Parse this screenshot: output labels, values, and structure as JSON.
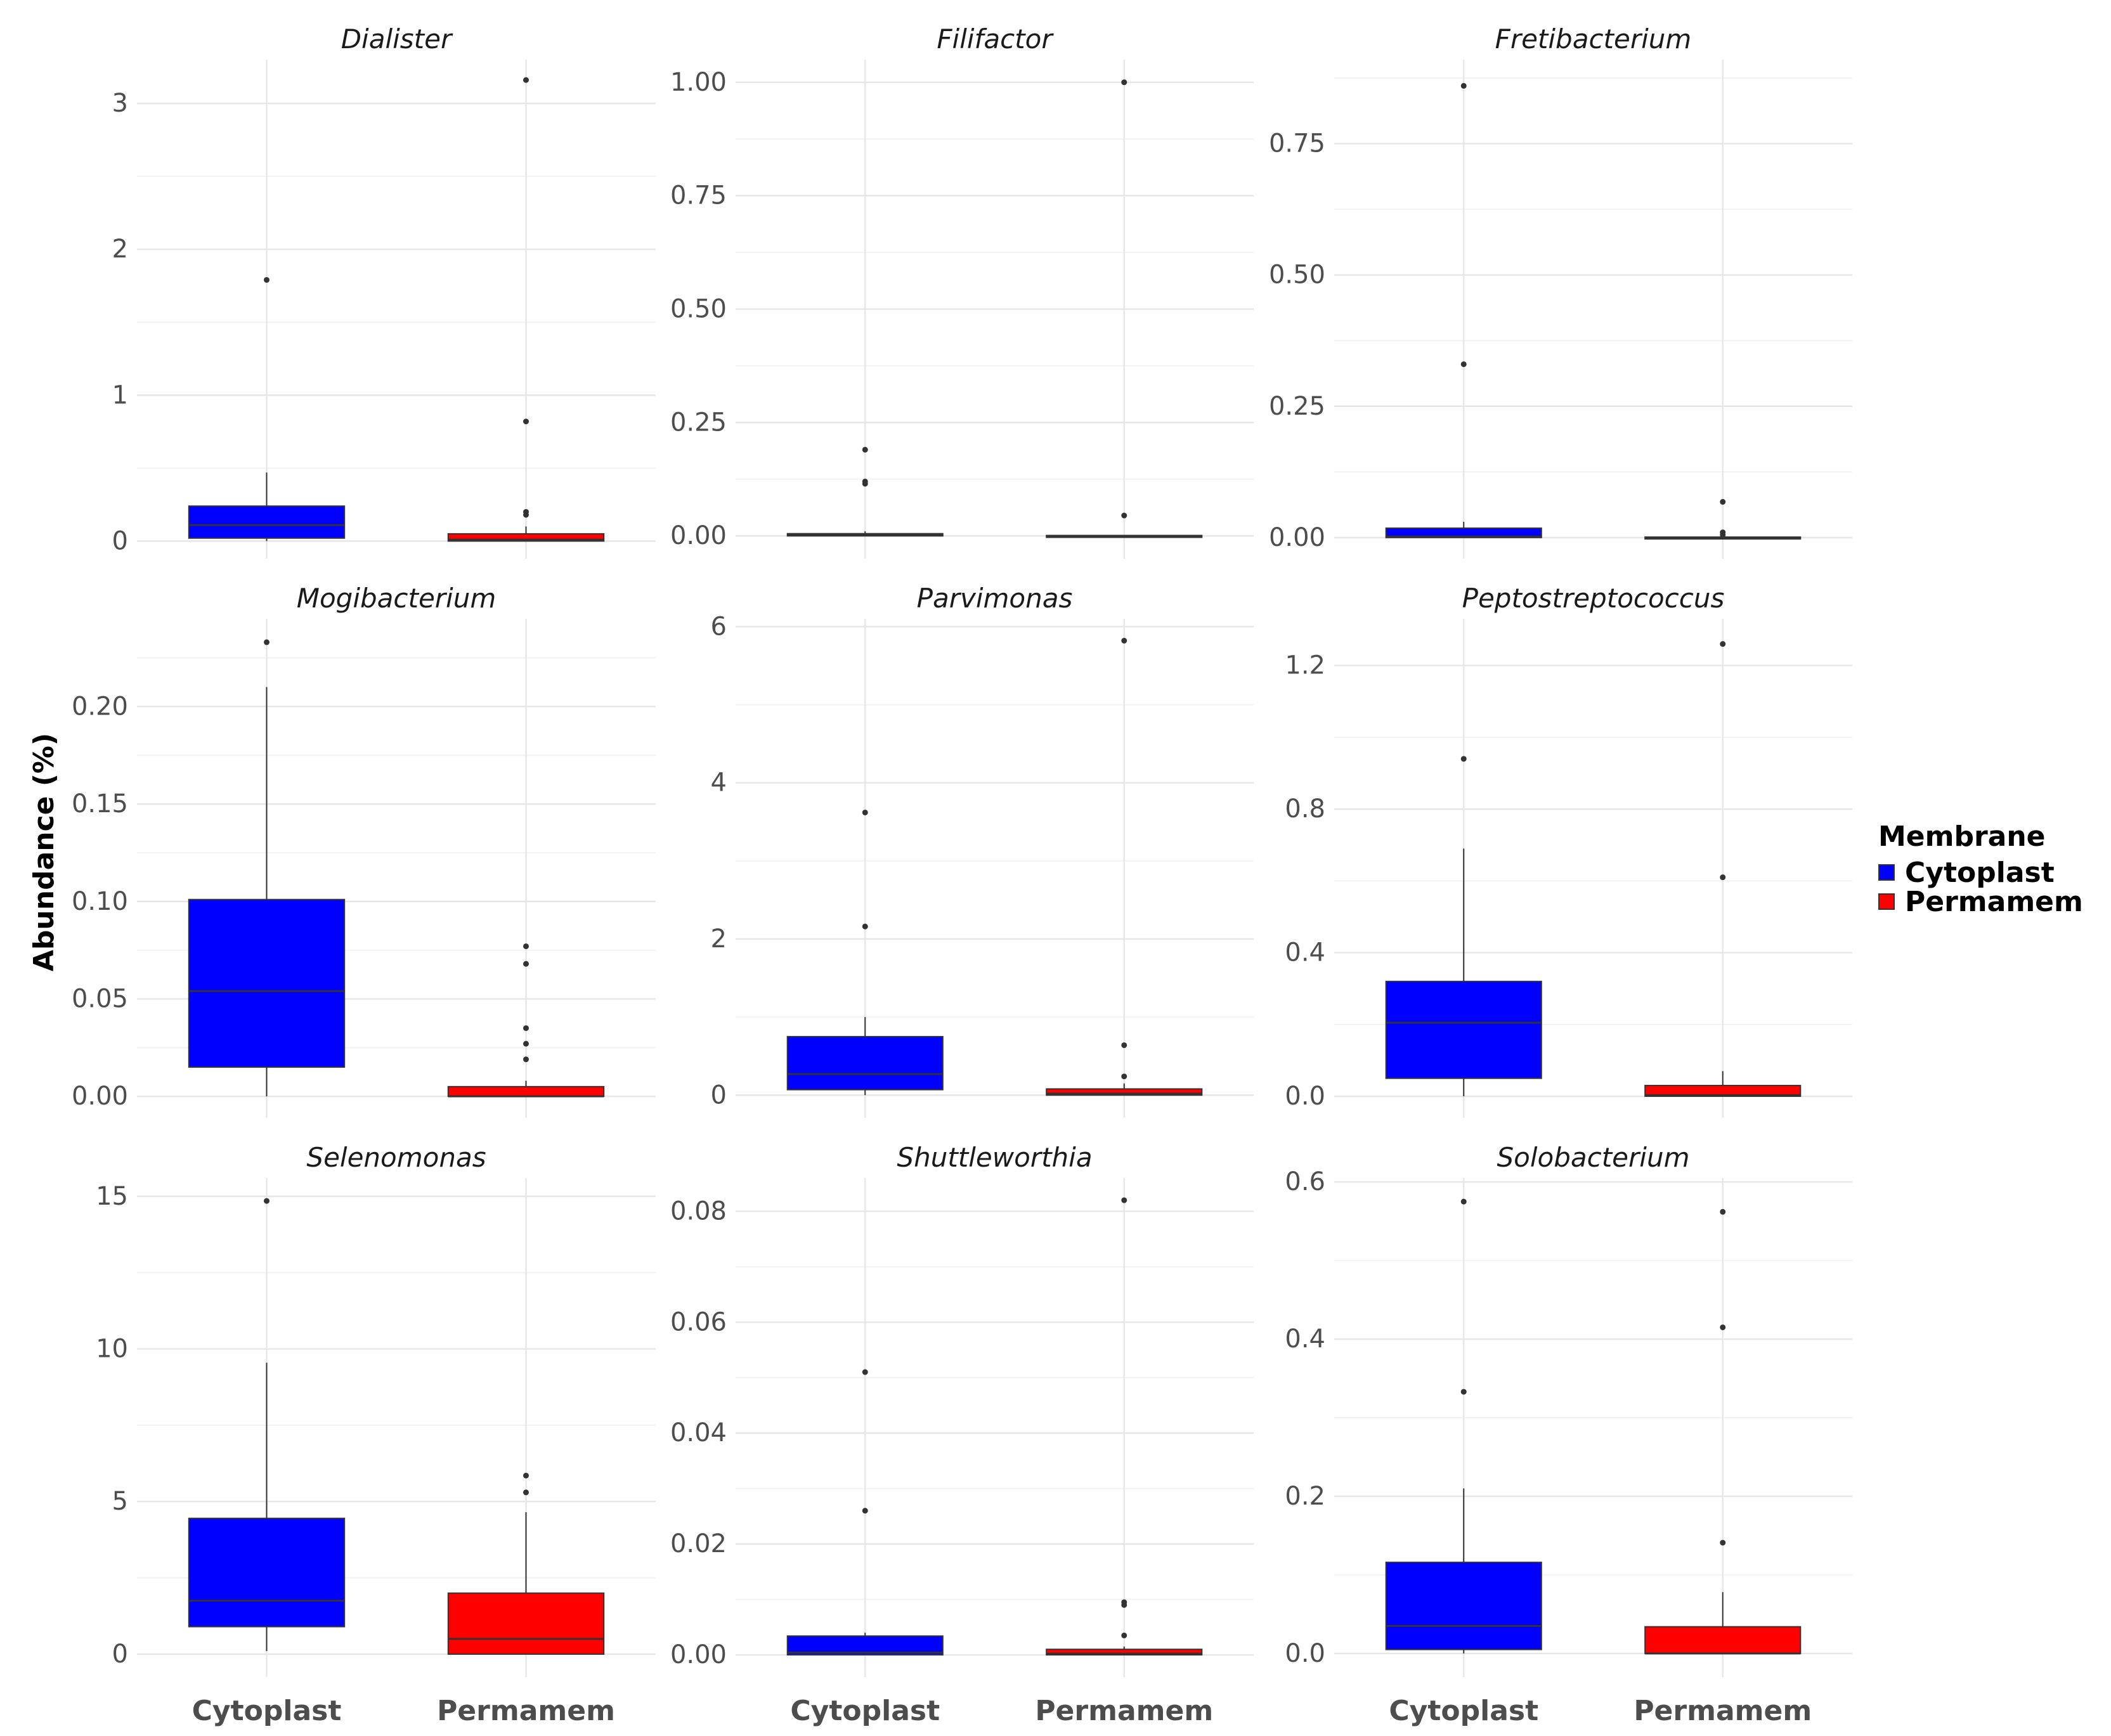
{
  "chart_data": {
    "type": "box",
    "ylabel": "Abundance (%)",
    "categories": [
      "Cytoplast",
      "Permamem"
    ],
    "legend": {
      "title": "Membrane",
      "placement": "right",
      "entries": [
        {
          "label": "Cytoplast",
          "color": "#0000ff"
        },
        {
          "label": "Permamem",
          "color": "#ff0000"
        }
      ]
    },
    "grid": true,
    "panels": [
      {
        "title": "Dialister",
        "ylim": [
          -0.12,
          3.3
        ],
        "yticks": [
          0,
          1,
          2,
          3
        ],
        "yticklabels": [
          "0",
          "1",
          "2",
          "3"
        ],
        "boxes": [
          {
            "group": "Cytoplast",
            "q1": 0.02,
            "median": 0.11,
            "q3": 0.24,
            "whisker_low": 0.0,
            "whisker_high": 0.47,
            "outliers": [
              1.79
            ]
          },
          {
            "group": "Permamem",
            "q1": 0.0,
            "median": 0.01,
            "q3": 0.05,
            "whisker_low": 0.0,
            "whisker_high": 0.1,
            "outliers": [
              3.16,
              0.82,
              0.2,
              0.18
            ]
          }
        ]
      },
      {
        "title": "Filifactor",
        "ylim": [
          -0.05,
          1.05
        ],
        "yticks": [
          0,
          0.25,
          0.5,
          0.75,
          1.0
        ],
        "yticklabels": [
          "0.00",
          "0.25",
          "0.50",
          "0.75",
          "1.00"
        ],
        "boxes": [
          {
            "group": "Cytoplast",
            "q1": 0.0,
            "median": 0.002,
            "q3": 0.005,
            "whisker_low": 0.0,
            "whisker_high": 0.01,
            "outliers": [
              0.19,
              0.12,
              0.115
            ]
          },
          {
            "group": "Permamem",
            "q1": 0.0,
            "median": 0.0,
            "q3": 0.001,
            "whisker_low": 0.0,
            "whisker_high": 0.001,
            "outliers": [
              1.0,
              0.045
            ]
          }
        ]
      },
      {
        "title": "Fretibacterium",
        "ylim": [
          -0.04,
          0.91
        ],
        "yticks": [
          0,
          0.25,
          0.5,
          0.75
        ],
        "yticklabels": [
          "0.00",
          "0.25",
          "0.50",
          "0.75"
        ],
        "boxes": [
          {
            "group": "Cytoplast",
            "q1": 0.0,
            "median": 0.002,
            "q3": 0.018,
            "whisker_low": 0.0,
            "whisker_high": 0.03,
            "outliers": [
              0.86,
              0.33
            ]
          },
          {
            "group": "Permamem",
            "q1": 0.0,
            "median": 0.0,
            "q3": 0.001,
            "whisker_low": 0.0,
            "whisker_high": 0.002,
            "outliers": [
              0.068,
              0.01,
              0.005
            ]
          }
        ]
      },
      {
        "title": "Mogibacterium",
        "ylim": [
          -0.011,
          0.245
        ],
        "yticks": [
          0,
          0.05,
          0.1,
          0.15,
          0.2
        ],
        "yticklabels": [
          "0.00",
          "0.05",
          "0.10",
          "0.15",
          "0.20"
        ],
        "boxes": [
          {
            "group": "Cytoplast",
            "q1": 0.015,
            "median": 0.054,
            "q3": 0.101,
            "whisker_low": 0.0,
            "whisker_high": 0.21,
            "outliers": [
              0.233
            ]
          },
          {
            "group": "Permamem",
            "q1": 0.0,
            "median": 0.0,
            "q3": 0.005,
            "whisker_low": 0.0,
            "whisker_high": 0.008,
            "outliers": [
              0.077,
              0.068,
              0.035,
              0.027,
              0.019
            ]
          }
        ]
      },
      {
        "title": "Parvimonas",
        "ylim": [
          -0.29,
          6.1
        ],
        "yticks": [
          0,
          2,
          4,
          6
        ],
        "yticklabels": [
          "0",
          "2",
          "4",
          "6"
        ],
        "boxes": [
          {
            "group": "Cytoplast",
            "q1": 0.07,
            "median": 0.27,
            "q3": 0.75,
            "whisker_low": 0.0,
            "whisker_high": 1.0,
            "outliers": [
              3.62,
              2.16
            ]
          },
          {
            "group": "Permamem",
            "q1": 0.0,
            "median": 0.02,
            "q3": 0.08,
            "whisker_low": 0.0,
            "whisker_high": 0.15,
            "outliers": [
              5.82,
              0.64,
              0.24
            ]
          }
        ]
      },
      {
        "title": "Peptostreptococcus",
        "ylim": [
          -0.06,
          1.33
        ],
        "yticks": [
          0,
          0.4,
          0.8,
          1.2
        ],
        "yticklabels": [
          "0.0",
          "0.4",
          "0.8",
          "1.2"
        ],
        "boxes": [
          {
            "group": "Cytoplast",
            "q1": 0.05,
            "median": 0.205,
            "q3": 0.32,
            "whisker_low": 0.0,
            "whisker_high": 0.69,
            "outliers": [
              0.94
            ]
          },
          {
            "group": "Permamem",
            "q1": 0.0,
            "median": 0.003,
            "q3": 0.03,
            "whisker_low": 0.0,
            "whisker_high": 0.07,
            "outliers": [
              1.26,
              0.61
            ]
          }
        ]
      },
      {
        "title": "Selenomonas",
        "ylim": [
          -0.75,
          15.6
        ],
        "yticks": [
          0,
          5,
          10,
          15
        ],
        "yticklabels": [
          "0",
          "5",
          "10",
          "15"
        ],
        "boxes": [
          {
            "group": "Cytoplast",
            "q1": 0.9,
            "median": 1.75,
            "q3": 4.45,
            "whisker_low": 0.1,
            "whisker_high": 9.55,
            "outliers": [
              14.85
            ]
          },
          {
            "group": "Permamem",
            "q1": 0.0,
            "median": 0.5,
            "q3": 2.0,
            "whisker_low": 0.0,
            "whisker_high": 4.65,
            "outliers": [
              5.85,
              5.3
            ]
          }
        ]
      },
      {
        "title": "Shuttleworthia",
        "ylim": [
          -0.004,
          0.086
        ],
        "yticks": [
          0,
          0.02,
          0.04,
          0.06,
          0.08
        ],
        "yticklabels": [
          "0.00",
          "0.02",
          "0.04",
          "0.06",
          "0.08"
        ],
        "boxes": [
          {
            "group": "Cytoplast",
            "q1": 0.0,
            "median": 0.0004,
            "q3": 0.0034,
            "whisker_low": 0.0,
            "whisker_high": 0.004,
            "outliers": [
              0.051,
              0.026
            ]
          },
          {
            "group": "Permamem",
            "q1": 0.0,
            "median": 0.0002,
            "q3": 0.001,
            "whisker_low": 0.0,
            "whisker_high": 0.0015,
            "outliers": [
              0.082,
              0.0095,
              0.009,
              0.0035
            ]
          }
        ]
      },
      {
        "title": "Solobacterium",
        "ylim": [
          -0.03,
          0.605
        ],
        "yticks": [
          0,
          0.2,
          0.4,
          0.6
        ],
        "yticklabels": [
          "0.0",
          "0.2",
          "0.4",
          "0.6"
        ],
        "boxes": [
          {
            "group": "Cytoplast",
            "q1": 0.005,
            "median": 0.035,
            "q3": 0.116,
            "whisker_low": 0.0,
            "whisker_high": 0.21,
            "outliers": [
              0.575,
              0.333
            ]
          },
          {
            "group": "Permamem",
            "q1": 0.0,
            "median": 0.0,
            "q3": 0.034,
            "whisker_low": 0.0,
            "whisker_high": 0.078,
            "outliers": [
              0.562,
              0.415,
              0.141
            ]
          }
        ]
      }
    ]
  }
}
